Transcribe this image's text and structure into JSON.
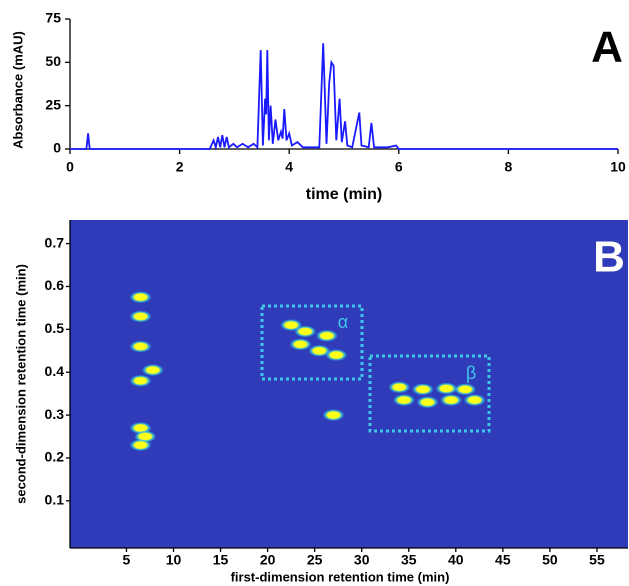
{
  "chart_data": [
    {
      "type": "line",
      "label": "A",
      "x_label": "time (min)",
      "y_label": "Absorbance (mAU)",
      "color": "#1a1aff",
      "xlim": [
        0,
        10
      ],
      "ylim": [
        0,
        75
      ],
      "xticks": [
        0,
        2,
        4,
        6,
        8,
        10
      ],
      "yticks": [
        0,
        25,
        50,
        75
      ],
      "x": [
        0,
        0.3,
        0.33,
        0.36,
        2.55,
        2.62,
        2.66,
        2.7,
        2.74,
        2.78,
        2.82,
        2.86,
        2.9,
        2.98,
        3.05,
        3.15,
        3.25,
        3.35,
        3.42,
        3.48,
        3.52,
        3.56,
        3.58,
        3.6,
        3.63,
        3.66,
        3.7,
        3.75,
        3.8,
        3.85,
        3.88,
        3.91,
        3.95,
        4.0,
        4.05,
        4.15,
        4.25,
        4.4,
        4.55,
        4.62,
        4.68,
        4.73,
        4.77,
        4.81,
        4.86,
        4.92,
        4.96,
        5.02,
        5.06,
        5.15,
        5.28,
        5.32,
        5.45,
        5.5,
        5.55,
        5.8,
        5.95,
        6.0,
        10
      ],
      "values": [
        0,
        0,
        9,
        0,
        0,
        5,
        1,
        7,
        1,
        8,
        1,
        7,
        1,
        3,
        1,
        3,
        1,
        3,
        1,
        57,
        2,
        29,
        20,
        57,
        5,
        25,
        3,
        17,
        5,
        10,
        6,
        23,
        5,
        9,
        2,
        4,
        1,
        1,
        1,
        61,
        3,
        38,
        50,
        48,
        5,
        29,
        4,
        16,
        2,
        1,
        21,
        2,
        1,
        15,
        1,
        1,
        2,
        0,
        0
      ]
    },
    {
      "type": "scatter",
      "label": "B",
      "x_label": "first-dimension retention time (min)",
      "y_label": "second-dimension retention time (min)",
      "color": "#ffff1a",
      "halo_color": "#34c8e0",
      "background": "#2f3bb8",
      "xlim": [
        -1,
        58.3
      ],
      "ylim": [
        -0.01,
        0.755
      ],
      "xticks": [
        5,
        10,
        15,
        20,
        25,
        30,
        35,
        40,
        45,
        50,
        55
      ],
      "yticks": [
        0.1,
        0.2,
        0.3,
        0.4,
        0.5,
        0.6,
        0.7
      ],
      "annotations": [
        "α",
        "β"
      ],
      "x": [
        6.5,
        6.5,
        6.5,
        7.8,
        6.5,
        6.5,
        7.0,
        6.5,
        22.5,
        24.0,
        26.3,
        23.5,
        25.5,
        27.3,
        34.0,
        36.5,
        39.0,
        41.0,
        34.5,
        37.0,
        39.5,
        42.0,
        27.0
      ],
      "values": [
        0.575,
        0.53,
        0.46,
        0.405,
        0.38,
        0.27,
        0.25,
        0.23,
        0.51,
        0.495,
        0.485,
        0.465,
        0.45,
        0.44,
        0.365,
        0.36,
        0.362,
        0.36,
        0.335,
        0.33,
        0.335,
        0.335,
        0.3
      ]
    }
  ]
}
